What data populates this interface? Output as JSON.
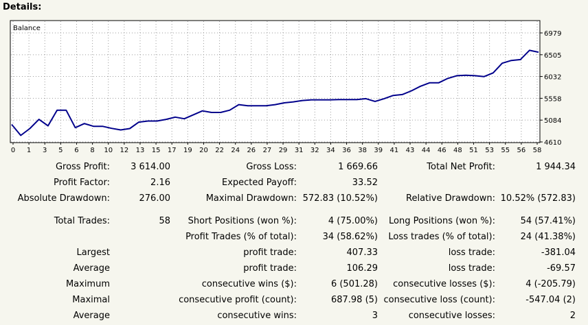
{
  "heading": "Details:",
  "chart_data": {
    "type": "line",
    "title": "Balance",
    "x_ticks": [
      "0",
      "1",
      "3",
      "5",
      "6",
      "8",
      "10",
      "12",
      "13",
      "15",
      "17",
      "19",
      "20",
      "22",
      "24",
      "26",
      "27",
      "29",
      "31",
      "32",
      "34",
      "36",
      "38",
      "39",
      "41",
      "43",
      "44",
      "46",
      "48",
      "51",
      "53",
      "55",
      "56",
      "58"
    ],
    "y_ticks": [
      "6979",
      "6505",
      "6032",
      "5558",
      "5084",
      "4610"
    ],
    "ylim": [
      4610,
      6979
    ],
    "grid": true,
    "series": [
      {
        "color": "#00008b",
        "x": [
          0,
          1,
          2,
          3,
          4,
          5,
          6,
          7,
          8,
          9,
          10,
          11,
          12,
          13,
          14,
          15,
          16,
          17,
          18,
          19,
          20,
          21,
          22,
          23,
          24,
          25,
          26,
          27,
          28,
          29,
          30,
          31,
          32,
          33,
          34,
          35,
          36,
          37,
          38,
          39,
          40,
          41,
          42,
          43,
          44,
          45,
          46,
          47,
          48,
          49,
          50,
          51,
          52,
          53,
          54,
          55,
          56,
          57,
          58
        ],
        "values": [
          4990,
          4751,
          4900,
          5100,
          4960,
          5300,
          5300,
          4920,
          5010,
          4950,
          4950,
          4905,
          4870,
          4900,
          5040,
          5065,
          5065,
          5100,
          5150,
          5113,
          5200,
          5285,
          5250,
          5250,
          5300,
          5420,
          5395,
          5395,
          5395,
          5420,
          5460,
          5480,
          5510,
          5525,
          5525,
          5525,
          5530,
          5530,
          5530,
          5550,
          5490,
          5550,
          5620,
          5640,
          5720,
          5820,
          5895,
          5895,
          5990,
          6050,
          6060,
          6050,
          6030,
          6110,
          6320,
          6380,
          6400,
          6600,
          6560
        ]
      }
    ]
  },
  "stats": {
    "gross_profit_label": "Gross Profit:",
    "gross_profit": "3 614.00",
    "gross_loss_label": "Gross Loss:",
    "gross_loss": "1 669.66",
    "total_net_profit_label": "Total Net Profit:",
    "total_net_profit": "1 944.34",
    "profit_factor_label": "Profit Factor:",
    "profit_factor": "2.16",
    "expected_payoff_label": "Expected Payoff:",
    "expected_payoff": "33.52",
    "absolute_drawdown_label": "Absolute Drawdown:",
    "absolute_drawdown": "276.00",
    "maximal_drawdown_label": "Maximal Drawdown:",
    "maximal_drawdown": "572.83 (10.52%)",
    "relative_drawdown_label": "Relative Drawdown:",
    "relative_drawdown": "10.52% (572.83)",
    "total_trades_label": "Total Trades:",
    "total_trades": "58",
    "short_positions_label": "Short Positions (won %):",
    "short_positions": "4 (75.00%)",
    "long_positions_label": "Long Positions (won %):",
    "long_positions": "54 (57.41%)",
    "profit_trades_label": "Profit Trades (% of total):",
    "profit_trades": "34 (58.62%)",
    "loss_trades_label": "Loss trades (% of total):",
    "loss_trades": "24 (41.38%)",
    "largest_label": "Largest",
    "largest_profit_label": "profit trade:",
    "largest_profit": "407.33",
    "largest_loss_label": "loss trade:",
    "largest_loss": "-381.04",
    "average_label": "Average",
    "average_profit_label": "profit trade:",
    "average_profit": "106.29",
    "average_loss_label": "loss trade:",
    "average_loss": "-69.57",
    "maximum_label": "Maximum",
    "max_cons_wins_label": "consecutive wins ($):",
    "max_cons_wins": "6 (501.28)",
    "max_cons_losses_label": "consecutive losses ($):",
    "max_cons_losses": "4 (-205.79)",
    "maximal_label": "Maximal",
    "maximal_cons_profit_label": "consecutive profit (count):",
    "maximal_cons_profit": "687.98 (5)",
    "maximal_cons_loss_label": "consecutive loss (count):",
    "maximal_cons_loss": "-547.04 (2)",
    "average2_label": "Average",
    "avg_cons_wins_label": "consecutive wins:",
    "avg_cons_wins": "3",
    "avg_cons_losses_label": "consecutive losses:",
    "avg_cons_losses": "2"
  }
}
